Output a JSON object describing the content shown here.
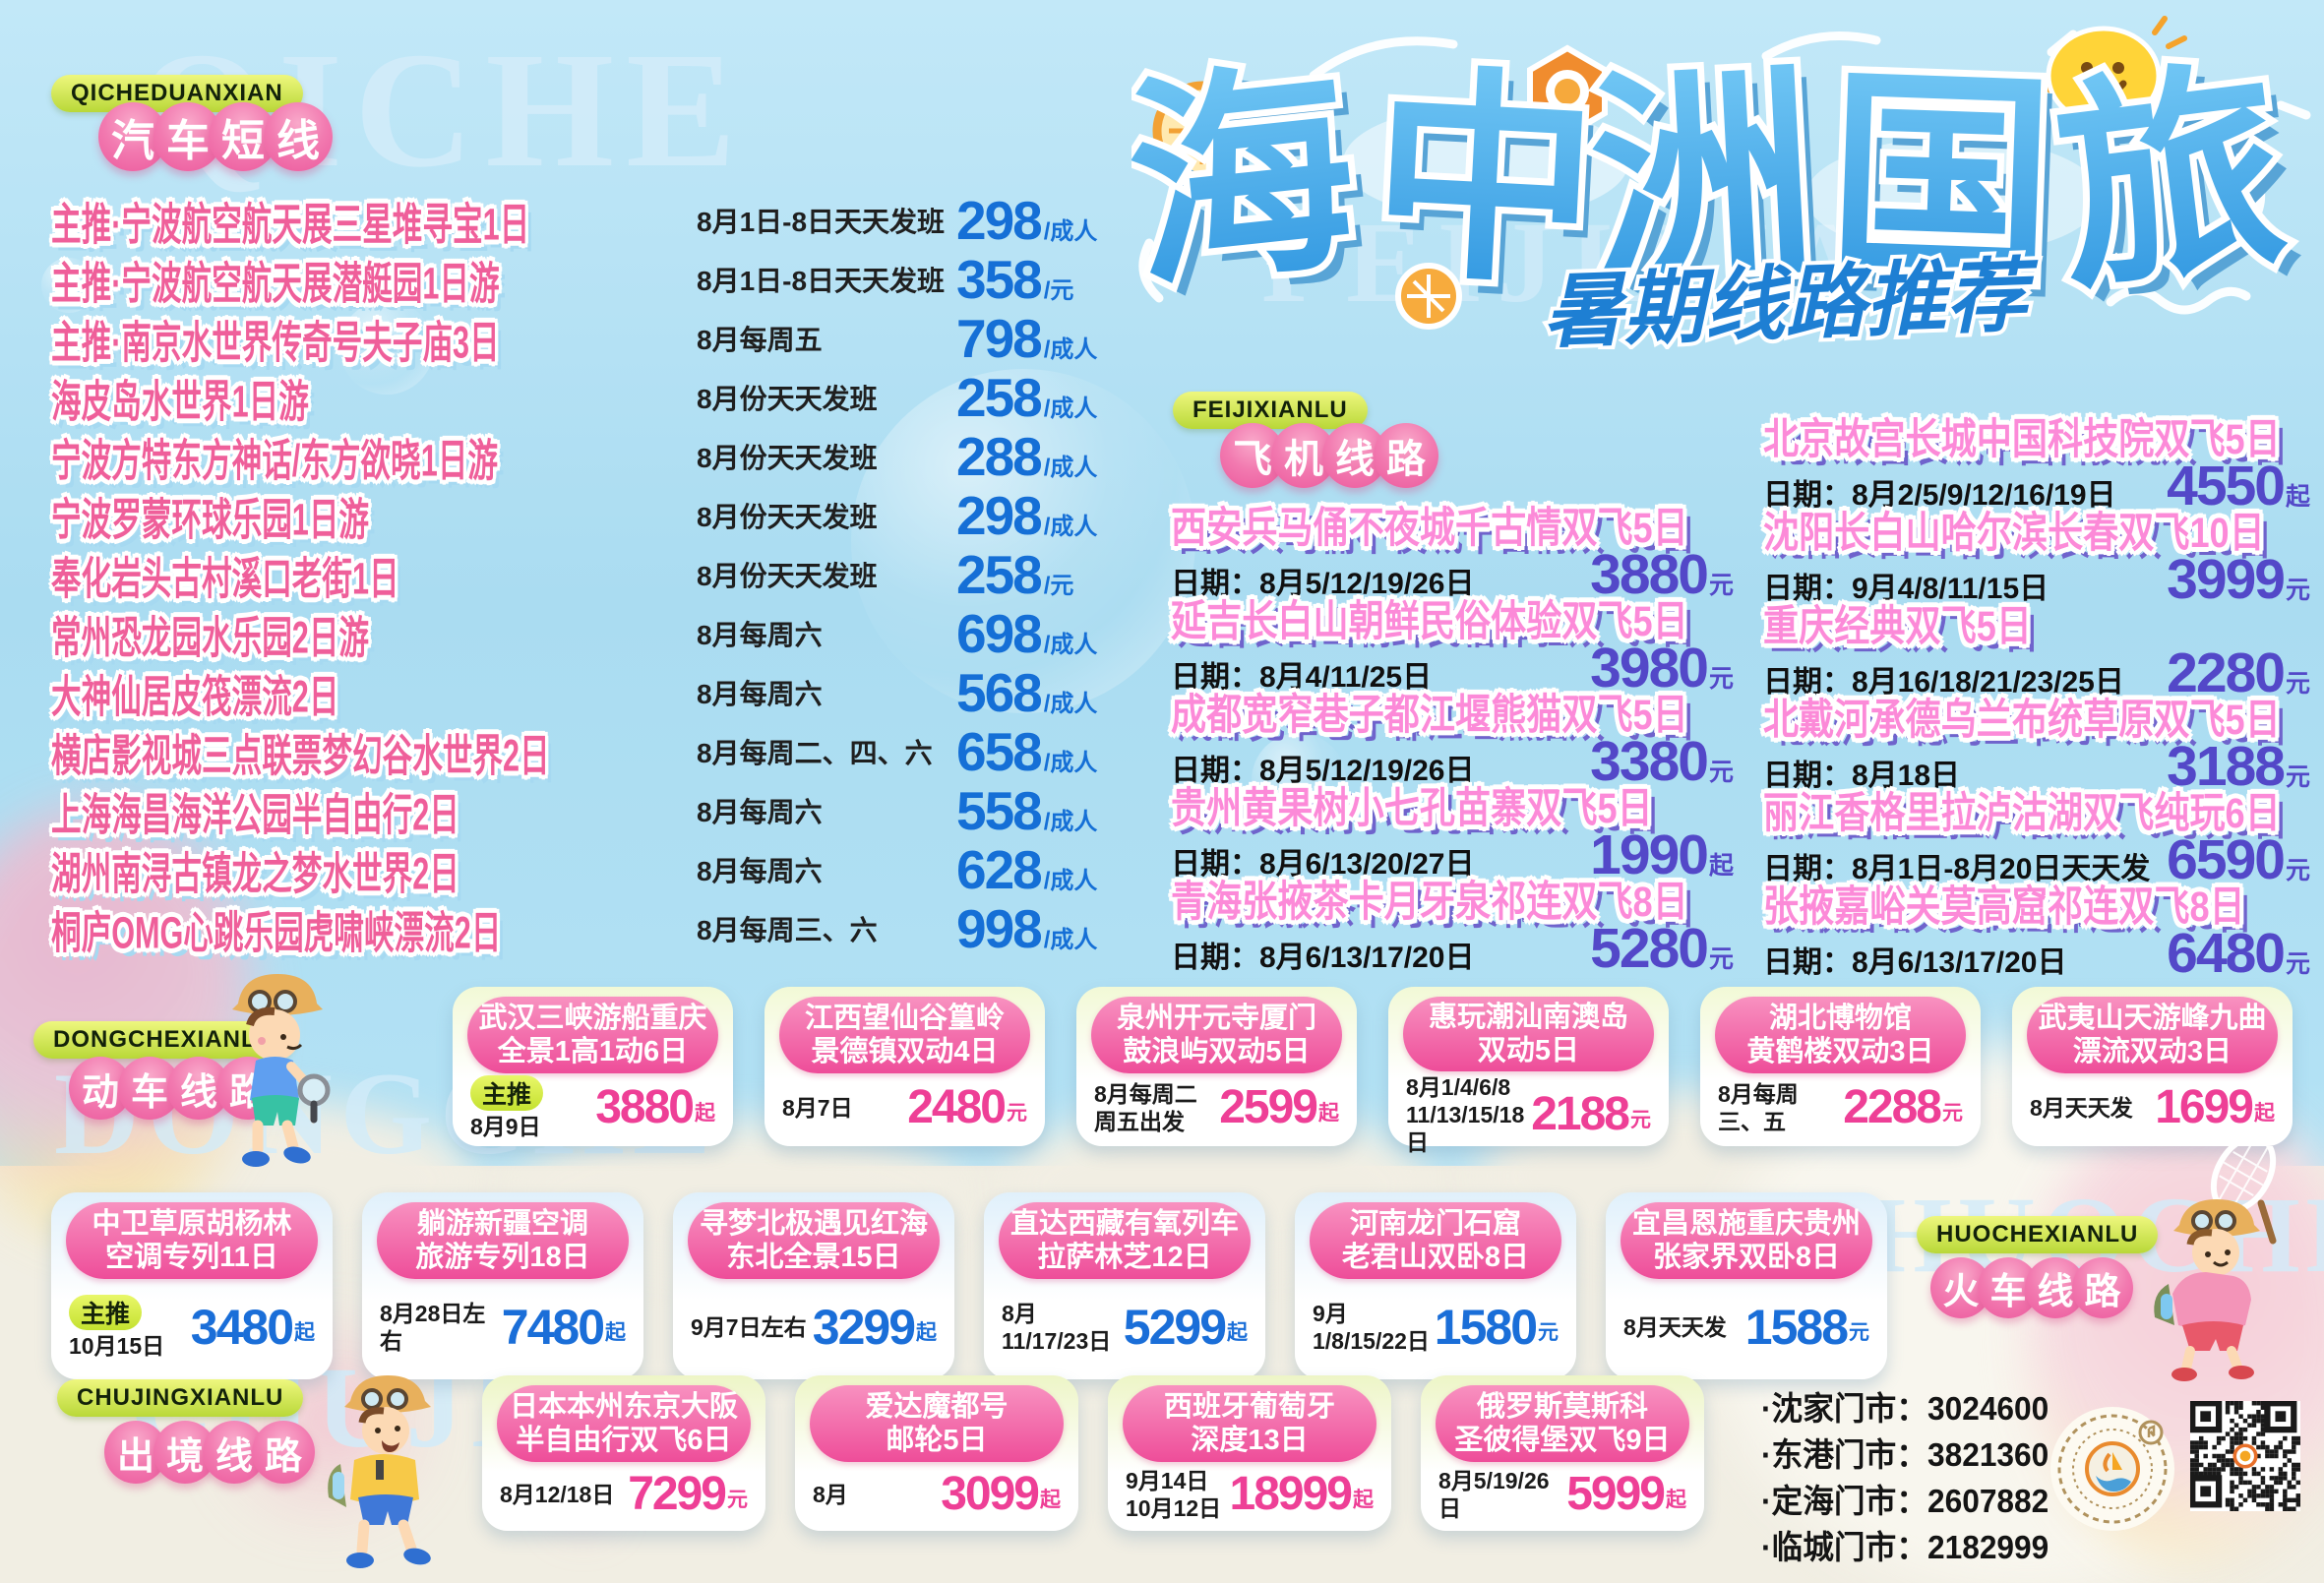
{
  "title": {
    "chars": [
      "海",
      "中",
      "洲",
      "国",
      "旅"
    ],
    "full": "海中洲国旅",
    "subtitle": "暑期线路推荐"
  },
  "colors": {
    "bus_price_blue": "#156fd6",
    "flight_price_purple": "#5348c8",
    "card_price_pink": "#ee3f96",
    "train_price_blue": "#1a6ed8",
    "pill_pink": "#ee4d99",
    "badge_green": "#b9d838",
    "title_blue": "#3f9fe0"
  },
  "sections": {
    "bus": {
      "badge": "QICHEDUANXIAN",
      "watermark": "QICHE",
      "title_chars": [
        "汽",
        "车",
        "短",
        "线"
      ],
      "rows": [
        {
          "name": "主推·宁波航空航天展三星堆寻宝1日",
          "date": "8月1日-8日天天发班",
          "price": "298",
          "unit": "/成人"
        },
        {
          "name": "主推·宁波航空航天展潜艇园1日游",
          "date": "8月1日-8日天天发班",
          "price": "358",
          "unit": "/元"
        },
        {
          "name": "主推·南京水世界传奇号夫子庙3日",
          "date": "8月每周五",
          "price": "798",
          "unit": "/成人"
        },
        {
          "name": "海皮岛水世界1日游",
          "date": "8月份天天发班",
          "price": "258",
          "unit": "/成人"
        },
        {
          "name": "宁波方特东方神话/东方欲晓1日游",
          "date": "8月份天天发班",
          "price": "288",
          "unit": "/成人"
        },
        {
          "name": "宁波罗蒙环球乐园1日游",
          "date": "8月份天天发班",
          "price": "298",
          "unit": "/成人"
        },
        {
          "name": "奉化岩头古村溪口老街1日",
          "date": "8月份天天发班",
          "price": "258",
          "unit": "/元"
        },
        {
          "name": "常州恐龙园水乐园2日游",
          "date": "8月每周六",
          "price": "698",
          "unit": "/成人"
        },
        {
          "name": "大神仙居皮筏漂流2日",
          "date": "8月每周六",
          "price": "568",
          "unit": "/成人"
        },
        {
          "name": "横店影视城三点联票梦幻谷水世界2日",
          "date": "8月每周二、四、六",
          "price": "658",
          "unit": "/成人"
        },
        {
          "name": "上海海昌海洋公园半自由行2日",
          "date": "8月每周六",
          "price": "558",
          "unit": "/成人"
        },
        {
          "name": "湖州南浔古镇龙之梦水世界2日",
          "date": "8月每周六",
          "price": "628",
          "unit": "/成人"
        },
        {
          "name": "桐庐OMG心跳乐园虎啸峡漂流2日",
          "date": "8月每周三、六",
          "price": "998",
          "unit": "/成人"
        }
      ]
    },
    "flight": {
      "badge": "FEIJIXIANLU",
      "watermark": "FEIJIXIAN",
      "title_chars": [
        "飞",
        "机",
        "线",
        "路"
      ],
      "date_label": "日期：",
      "left": [
        {
          "name": "西安兵马俑不夜城千古情双飞5日",
          "date": "8月5/12/19/26日",
          "price": "3880",
          "unit": "元"
        },
        {
          "name": "延吉长白山朝鲜民俗体验双飞5日",
          "date": "8月4/11/25日",
          "price": "3980",
          "unit": "元"
        },
        {
          "name": "成都宽窄巷子都江堰熊猫双飞5日",
          "date": "8月5/12/19/26日",
          "price": "3380",
          "unit": "元"
        },
        {
          "name": "贵州黄果树小七孔苗寨双飞5日",
          "date": "8月6/13/20/27日",
          "price": "1990",
          "unit": "起"
        },
        {
          "name": "青海张掖茶卡月牙泉祁连双飞8日",
          "date": "8月6/13/17/20日",
          "price": "5280",
          "unit": "元"
        }
      ],
      "right": [
        {
          "name": "北京故宫长城中国科技院双飞5日",
          "date": "8月2/5/9/12/16/19日",
          "price": "4550",
          "unit": "起"
        },
        {
          "name": "沈阳长白山哈尔滨长春双飞10日",
          "date": "9月4/8/11/15日",
          "price": "3999",
          "unit": "元"
        },
        {
          "name": "重庆经典双飞5日",
          "date": "8月16/18/21/23/25日",
          "price": "2280",
          "unit": "元"
        },
        {
          "name": "北戴河承德乌兰布统草原双飞5日",
          "date": "8月18日",
          "price": "3188",
          "unit": "元"
        },
        {
          "name": "丽江香格里拉泸沽湖双飞纯玩6日",
          "date": "8月1日-8月20日天天发",
          "price": "6590",
          "unit": "元"
        },
        {
          "name": "张掖嘉峪关莫高窟祁连双飞8日",
          "date": "8月6/13/17/20日",
          "price": "6480",
          "unit": "元"
        }
      ]
    },
    "dongche": {
      "badge": "DONGCHEXIANLU",
      "watermark": "DONGCHE",
      "title_chars": [
        "动",
        "车",
        "线",
        "路"
      ],
      "cards": [
        {
          "title": "武汉三峡游船重庆\n全景1高1动6日",
          "tag": "主推",
          "date": "8月9日",
          "price": "3880",
          "unit": "起"
        },
        {
          "title": "江西望仙谷篁岭\n景德镇双动4日",
          "date": "8月7日",
          "price": "2480",
          "unit": "元"
        },
        {
          "title": "泉州开元寺厦门\n鼓浪屿双动5日",
          "date": "8月每周二\n周五出发",
          "price": "2599",
          "unit": "起"
        },
        {
          "title": "惠玩潮汕南澳岛\n双动5日",
          "date": "8月1/4/6/8\n11/13/15/18日",
          "price": "2188",
          "unit": "元"
        },
        {
          "title": "湖北博物馆\n黄鹤楼双动3日",
          "date": "8月每周\n三、五",
          "price": "2288",
          "unit": "元"
        },
        {
          "title": "武夷山天游峰九曲\n漂流双动3日",
          "date": "8月天天发",
          "price": "1699",
          "unit": "起"
        }
      ]
    },
    "huoche": {
      "badge": "HUOCHEXIANLU",
      "watermark": "HUOCHE",
      "title_chars": [
        "火",
        "车",
        "线",
        "路"
      ],
      "cards": [
        {
          "title": "中卫草原胡杨林\n空调专列11日",
          "tag": "主推",
          "date": "10月15日",
          "price": "3480",
          "unit": "起"
        },
        {
          "title": "躺游新疆空调\n旅游专列18日",
          "date": "8月28日左右",
          "price": "7480",
          "unit": "起"
        },
        {
          "title": "寻梦北极遇见红海\n东北全景15日",
          "date": "9月7日左右",
          "price": "3299",
          "unit": "起"
        },
        {
          "title": "直达西藏有氧列车\n拉萨林芝12日",
          "date": "8月11/17/23日",
          "price": "5299",
          "unit": "起"
        },
        {
          "title": "河南龙门石窟\n老君山双卧8日",
          "date": "9月1/8/15/22日",
          "price": "1580",
          "unit": "元"
        },
        {
          "title": "宜昌恩施重庆贵州\n张家界双卧8日",
          "date": "8月天天发",
          "price": "1588",
          "unit": "元"
        }
      ]
    },
    "chujing": {
      "badge": "CHUJINGXIANLU",
      "watermark": "CHUJIN",
      "title_chars": [
        "出",
        "境",
        "线",
        "路"
      ],
      "cards": [
        {
          "title": "日本本州东京大阪\n半自由行双飞6日",
          "date": "8月12/18日",
          "price": "7299",
          "unit": "元"
        },
        {
          "title": "爱达魔都号\n邮轮5日",
          "date": "8月",
          "price": "3099",
          "unit": "起"
        },
        {
          "title": "西班牙葡萄牙\n深度13日",
          "date": "9月14日\n10月12日",
          "price": "18999",
          "unit": "起"
        },
        {
          "title": "俄罗斯莫斯科\n圣彼得堡双飞9日",
          "date": "8月5/19/26日",
          "price": "5999",
          "unit": "起"
        }
      ]
    },
    "contacts": {
      "items": [
        {
          "label": "·沈家门市：",
          "phone": "3024600"
        },
        {
          "label": "·东港门市：",
          "phone": "3821360"
        },
        {
          "label": "·定海门市：",
          "phone": "2607882"
        },
        {
          "label": "·临城门市：",
          "phone": "2182999"
        }
      ]
    }
  }
}
